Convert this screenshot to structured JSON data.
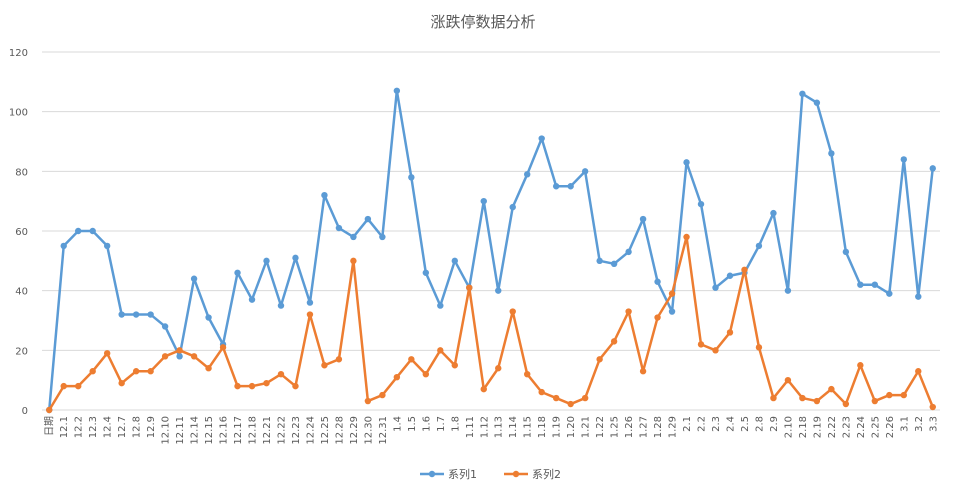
{
  "chart_data": {
    "type": "line",
    "title": "涨跌停数据分析",
    "xlabel": "",
    "ylabel": "",
    "ylim": [
      0,
      120
    ],
    "yticks": [
      0,
      20,
      40,
      60,
      80,
      100,
      120
    ],
    "grid": true,
    "legend": "bottom",
    "categories": [
      "日期",
      "12.1",
      "12.2",
      "12.3",
      "12.4",
      "12.7",
      "12.8",
      "12.9",
      "12.10",
      "12.11",
      "12.14",
      "12.15",
      "12.16",
      "12.17",
      "12.18",
      "12.21",
      "12.22",
      "12.23",
      "12.24",
      "12.25",
      "12.28",
      "12.29",
      "12.30",
      "12.31",
      "1.4",
      "1.5",
      "1.6",
      "1.7",
      "1.8",
      "1.11",
      "1.12",
      "1.13",
      "1.14",
      "1.15",
      "1.18",
      "1.19",
      "1.20",
      "1.21",
      "1.22",
      "1.25",
      "1.26",
      "1.27",
      "1.28",
      "1.29",
      "2.1",
      "2.2",
      "2.3",
      "2.4",
      "2.5",
      "2.8",
      "2.9",
      "2.10",
      "2.18",
      "2.19",
      "2.22",
      "2.23",
      "2.24",
      "2.25",
      "2.26",
      "3.1",
      "3.2",
      "3.3"
    ],
    "series": [
      {
        "name": "系列1",
        "color": "#5b9bd5",
        "values": [
          0,
          55,
          60,
          60,
          55,
          32,
          32,
          32,
          28,
          18,
          44,
          31,
          22,
          46,
          37,
          50,
          35,
          51,
          36,
          72,
          61,
          58,
          64,
          58,
          107,
          78,
          46,
          35,
          50,
          41,
          70,
          40,
          68,
          79,
          91,
          75,
          75,
          80,
          50,
          49,
          53,
          64,
          43,
          33,
          83,
          69,
          41,
          45,
          46,
          55,
          66,
          40,
          106,
          103,
          86,
          53,
          42,
          42,
          39,
          84,
          38,
          81
        ]
      },
      {
        "name": "系列2",
        "color": "#ed7d31",
        "values": [
          0,
          8,
          8,
          13,
          19,
          9,
          13,
          13,
          18,
          20,
          18,
          14,
          21,
          8,
          8,
          9,
          12,
          8,
          32,
          15,
          17,
          50,
          3,
          5,
          11,
          17,
          12,
          20,
          15,
          41,
          7,
          14,
          33,
          12,
          6,
          4,
          2,
          4,
          17,
          23,
          33,
          13,
          31,
          39,
          58,
          22,
          20,
          26,
          47,
          21,
          4,
          10,
          4,
          3,
          7,
          2,
          15,
          3,
          5,
          5,
          13,
          1
        ]
      }
    ]
  }
}
